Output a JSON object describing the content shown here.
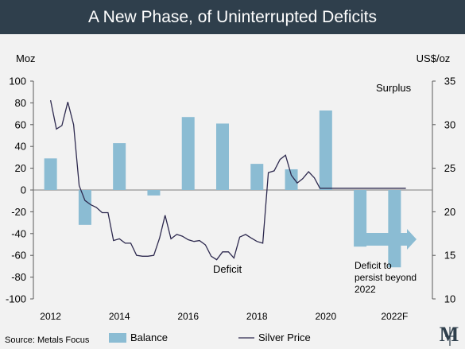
{
  "header": {
    "title": "A New Phase, of Uninterrupted Deficits"
  },
  "chart_data": {
    "type": "bar+line",
    "categories": [
      "2012",
      "2013",
      "2014",
      "2015",
      "2016",
      "2017",
      "2018",
      "2019",
      "2020",
      "2021",
      "2022F"
    ],
    "xtick_labels": [
      "2012",
      "2014",
      "2016",
      "2018",
      "2020",
      "2022F"
    ],
    "series": [
      {
        "name": "Balance",
        "type": "bar",
        "axis": "left",
        "color": "#8bbcd3",
        "values": [
          29,
          -32,
          43,
          -5,
          67,
          61,
          24,
          19,
          73,
          -52,
          -71
        ]
      },
      {
        "name": "Silver Price",
        "type": "line",
        "axis": "right",
        "color": "#2e2a4f",
        "x": [
          2012.0,
          2012.17,
          2012.33,
          2012.5,
          2012.67,
          2012.83,
          2013.0,
          2013.17,
          2013.33,
          2013.5,
          2013.67,
          2013.83,
          2014.0,
          2014.17,
          2014.33,
          2014.5,
          2014.67,
          2014.83,
          2015.0,
          2015.17,
          2015.33,
          2015.5,
          2015.67,
          2015.83,
          2016.0,
          2016.17,
          2016.33,
          2016.5,
          2016.67,
          2016.83,
          2017.0,
          2017.17,
          2017.33,
          2017.5,
          2017.67,
          2017.83,
          2018.0,
          2018.17,
          2018.33,
          2018.5,
          2018.67,
          2018.83,
          2019.0,
          2019.17,
          2019.33,
          2019.5,
          2019.67,
          2019.83,
          2020.0,
          2020.17,
          2020.33,
          2020.5,
          2020.67,
          2020.83,
          2021.0,
          2021.17,
          2021.33,
          2021.5,
          2021.67,
          2021.83,
          2022.0,
          2022.17,
          2022.33
        ],
        "values": [
          32.8,
          29.5,
          29.9,
          32.6,
          30.0,
          23.0,
          21.3,
          20.8,
          20.5,
          19.9,
          19.9,
          16.7,
          16.9,
          16.4,
          16.4,
          15.0,
          14.9,
          14.9,
          15.0,
          17.0,
          19.6,
          16.9,
          17.4,
          17.2,
          16.8,
          16.6,
          16.7,
          16.2,
          14.9,
          14.5,
          15.4,
          15.4,
          14.7,
          17.1,
          17.4,
          17.0,
          16.6,
          16.4,
          24.5,
          24.7,
          26.0,
          26.5,
          24.2,
          23.3,
          23.8,
          24.6,
          23.9,
          22.7,
          22.7,
          22.7,
          22.7,
          22.7,
          22.7,
          22.7,
          22.7,
          22.7,
          22.7,
          22.7,
          22.7,
          22.7,
          22.7,
          22.7,
          22.7
        ]
      }
    ],
    "y_left": {
      "label": "Moz",
      "min": -100,
      "max": 100,
      "ticks": [
        -100,
        -80,
        -60,
        -40,
        -20,
        0,
        20,
        40,
        60,
        80,
        100
      ]
    },
    "y_right": {
      "label": "US$/oz",
      "min": 10,
      "max": 35,
      "ticks": [
        10,
        15,
        20,
        25,
        30,
        35
      ]
    },
    "annotations": {
      "surplus": "Surplus",
      "deficit": "Deficit",
      "deficit_forecast": [
        "Deficit to",
        "persist beyond",
        "2022"
      ]
    },
    "legend": {
      "position": "bottom",
      "balance_label": "Balance",
      "price_label": "Silver Price"
    },
    "grid": false
  },
  "footer": {
    "source": "Source: Metals Focus",
    "logo_text": "M"
  }
}
